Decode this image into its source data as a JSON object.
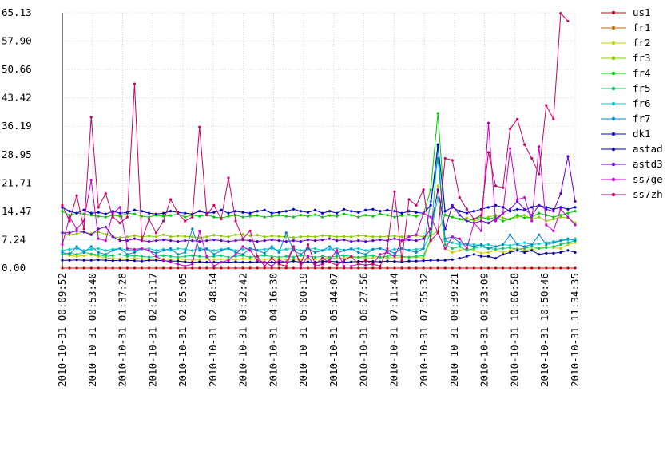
{
  "chart_data": {
    "type": "line",
    "title": "",
    "xlabel": "",
    "ylabel": "",
    "ylim": [
      0,
      65.13
    ],
    "y_ticks": [
      "0.00",
      "7.24",
      "14.47",
      "21.71",
      "28.95",
      "36.19",
      "43.42",
      "50.66",
      "57.90",
      "65.13"
    ],
    "x_ticks": [
      "2010-10-31 00:09:52",
      "2010-10-31 00:53:40",
      "2010-10-31 01:37:28",
      "2010-10-31 02:21:17",
      "2010-10-31 02:05:05",
      "2010-10-31 02:48:54",
      "2010-10-31 03:32:42",
      "2010-10-31 04:16:30",
      "2010-10-31 05:00:19",
      "2010-10-31 05:44:07",
      "2010-10-31 06:27:56",
      "2010-10-31 07:11:44",
      "2010-10-31 07:55:32",
      "2010-10-31 08:39:21",
      "2010-10-31 09:23:09",
      "2010-10-31 10:06:58",
      "2010-10-31 10:50:46",
      "2010-10-31 11:34:35"
    ],
    "grid": true,
    "legend_position": "right",
    "series": [
      {
        "name": "us1",
        "color": "#cc0000",
        "values": [
          0,
          0,
          0,
          0,
          0,
          0,
          0,
          0,
          0,
          0,
          0,
          0,
          0,
          0,
          0,
          0,
          0,
          0,
          0,
          0,
          0,
          0,
          0,
          0,
          0,
          0,
          0,
          0,
          0,
          0,
          0,
          0,
          0,
          0,
          0,
          0,
          0,
          0,
          0,
          0,
          0,
          0,
          0,
          0,
          0,
          0,
          0,
          0,
          0,
          0,
          0,
          0,
          0,
          0,
          0,
          0,
          0,
          0,
          0,
          0,
          0,
          0,
          0,
          0,
          0,
          0,
          0,
          0,
          0,
          0,
          0,
          0
        ]
      },
      {
        "name": "fr1",
        "color": "#cc6600",
        "values": [
          null,
          null,
          null,
          null,
          null,
          null,
          null,
          null,
          null,
          null,
          null,
          null,
          null,
          null,
          null,
          null,
          null,
          null,
          null,
          null,
          null,
          null,
          null,
          null,
          null,
          null,
          null,
          null,
          null,
          null,
          null,
          null,
          null,
          null,
          null,
          null,
          null,
          null,
          null,
          null,
          null,
          null,
          null,
          null,
          null,
          null,
          null,
          null,
          null,
          null,
          null,
          null,
          null,
          null,
          null,
          null,
          null,
          null,
          null,
          null,
          null,
          null,
          null,
          null,
          null,
          null,
          null,
          null,
          null,
          null,
          null,
          null
        ]
      },
      {
        "name": "fr2",
        "color": "#cccc00",
        "values": [
          3.5,
          3.2,
          3.0,
          3.2,
          3.4,
          3.0,
          2.6,
          2.5,
          2.4,
          2.3,
          2.5,
          2.4,
          2.2,
          2.3,
          2.4,
          2.2,
          2.4,
          2.2,
          2.0,
          2.2,
          2.4,
          2.2,
          2.3,
          2.2,
          2.2,
          2.4,
          2.3,
          2.3,
          2.2,
          2.4,
          2.3,
          2.2,
          2.2,
          2.2,
          2.3,
          2.3,
          2.4,
          2.6,
          2.5,
          2.6,
          2.8,
          2.7,
          2.6,
          2.6,
          2.7,
          2.6,
          2.7,
          2.7,
          2.8,
          2.8,
          2.6,
          7.0,
          21.0,
          5.0,
          4.0,
          4.5,
          5.0,
          4.5,
          3.8,
          4.0,
          4.5,
          4.0,
          4.5,
          5.0,
          4.5,
          4.8,
          5.0,
          5.5,
          5.2,
          5.0,
          6.0,
          6.5
        ]
      },
      {
        "name": "fr3",
        "color": "#88cc00",
        "values": [
          9.0,
          8.5,
          8.8,
          9.2,
          8.8,
          9.2,
          8.6,
          8.0,
          7.8,
          8.0,
          8.3,
          8.0,
          8.2,
          8.0,
          8.5,
          8.0,
          8.2,
          8.1,
          8.0,
          7.8,
          8.0,
          8.4,
          8.2,
          8.0,
          8.5,
          8.6,
          8.3,
          8.4,
          8.0,
          8.2,
          8.1,
          8.0,
          7.8,
          8.0,
          8.1,
          8.0,
          8.3,
          8.2,
          8.0,
          8.1,
          8.0,
          8.3,
          8.2,
          8.0,
          8.0,
          8.1,
          8.2,
          8.0,
          8.2,
          8.3,
          8.0,
          8.2,
          9.5,
          13.5,
          13.0,
          12.5,
          12.8,
          12.0,
          12.5,
          13.0,
          13.5,
          12.8,
          12.5,
          13.0,
          13.5,
          12.5,
          13.0,
          12.0,
          12.5,
          13.0,
          12.8,
          11.5
        ]
      },
      {
        "name": "fr4",
        "color": "#00cc00",
        "values": [
          14.5,
          13.5,
          14.0,
          13.8,
          13.5,
          13.2,
          13.0,
          13.5,
          13.2,
          14.0,
          13.8,
          13.2,
          13.0,
          13.5,
          13.2,
          13.4,
          13.8,
          13.0,
          13.5,
          13.2,
          13.6,
          13.0,
          12.8,
          13.2,
          13.5,
          13.0,
          13.2,
          13.4,
          13.0,
          13.2,
          13.5,
          13.2,
          13.0,
          13.5,
          13.2,
          13.6,
          13.0,
          13.4,
          13.2,
          13.8,
          13.5,
          13.0,
          13.5,
          13.2,
          13.8,
          13.5,
          13.0,
          13.4,
          13.6,
          13.2,
          13.8,
          20.0,
          39.5,
          13.5,
          13.0,
          12.5,
          12.0,
          12.5,
          13.0,
          12.5,
          13.0,
          12.0,
          12.5,
          13.5,
          12.8,
          13.0,
          14.0,
          13.5,
          13.0,
          13.5,
          14.0,
          14.5
        ]
      },
      {
        "name": "fr5",
        "color": "#00cc66",
        "values": [
          3.5,
          3.8,
          3.5,
          4.0,
          3.6,
          3.4,
          3.0,
          3.2,
          3.5,
          3.0,
          3.2,
          3.0,
          2.8,
          3.0,
          3.2,
          3.0,
          2.8,
          3.0,
          3.2,
          3.0,
          2.8,
          3.0,
          3.2,
          2.8,
          3.0,
          3.2,
          2.8,
          3.0,
          3.2,
          3.0,
          2.8,
          3.0,
          2.8,
          3.2,
          3.0,
          2.8,
          3.0,
          2.8,
          3.0,
          3.2,
          3.0,
          2.8,
          3.0,
          3.2,
          2.8,
          3.0,
          3.2,
          3.0,
          2.8,
          3.0,
          3.2,
          7.5,
          31.0,
          6.0,
          5.0,
          5.5,
          4.5,
          5.0,
          5.5,
          5.0,
          4.8,
          5.0,
          5.2,
          4.8,
          5.0,
          5.5,
          5.0,
          5.2,
          5.5,
          6.0,
          6.5,
          7.0
        ]
      },
      {
        "name": "fr6",
        "color": "#00cccc",
        "values": [
          4.5,
          4.8,
          5.0,
          4.5,
          4.8,
          5.0,
          4.5,
          4.8,
          5.0,
          4.6,
          4.5,
          4.8,
          5.0,
          4.5,
          4.8,
          4.5,
          5.0,
          4.8,
          4.5,
          5.0,
          4.8,
          4.5,
          4.8,
          5.0,
          4.5,
          4.8,
          5.0,
          4.6,
          4.8,
          5.0,
          4.5,
          4.8,
          5.0,
          4.5,
          4.8,
          5.0,
          4.5,
          4.8,
          5.0,
          4.6,
          4.8,
          5.0,
          4.5,
          4.8,
          5.0,
          4.5,
          4.8,
          5.0,
          4.6,
          4.8,
          5.0,
          9.0,
          18.0,
          7.0,
          6.5,
          6.0,
          6.2,
          6.0,
          5.8,
          6.0,
          5.5,
          6.0,
          5.8,
          6.2,
          6.5,
          6.0,
          6.2,
          6.5,
          6.8,
          7.0,
          7.2,
          7.5
        ]
      },
      {
        "name": "fr7",
        "color": "#0088cc",
        "values": [
          4.0,
          3.5,
          5.5,
          4.0,
          5.5,
          4.0,
          3.5,
          4.5,
          5.0,
          3.5,
          4.0,
          5.0,
          4.5,
          3.8,
          4.5,
          5.0,
          3.5,
          4.0,
          10.0,
          4.5,
          5.0,
          3.5,
          4.5,
          5.0,
          4.0,
          3.5,
          5.0,
          4.5,
          3.8,
          5.5,
          4.0,
          9.0,
          4.5,
          3.5,
          5.0,
          4.0,
          4.5,
          5.5,
          3.8,
          4.5,
          5.0,
          4.0,
          3.5,
          4.8,
          5.0,
          4.5,
          3.8,
          5.0,
          4.5,
          4.0,
          5.0,
          17.0,
          28.0,
          7.5,
          8.0,
          6.5,
          6.0,
          5.5,
          6.0,
          5.0,
          5.5,
          6.0,
          8.5,
          6.0,
          5.5,
          6.0,
          8.5,
          6.0,
          6.5,
          7.0,
          7.5,
          7.0
        ]
      },
      {
        "name": "dk1",
        "color": "#0000cc",
        "values": [
          15.5,
          14.5,
          14.0,
          14.8,
          14.0,
          14.2,
          13.8,
          14.5,
          14.0,
          14.2,
          14.8,
          14.5,
          14.0,
          13.8,
          14.0,
          14.5,
          14.2,
          14.0,
          13.8,
          14.5,
          14.0,
          14.2,
          14.8,
          14.0,
          14.5,
          14.2,
          14.0,
          14.5,
          14.8,
          14.0,
          14.2,
          14.5,
          15.0,
          14.5,
          14.2,
          14.8,
          14.0,
          14.5,
          14.0,
          15.0,
          14.5,
          14.2,
          14.8,
          15.0,
          14.5,
          14.8,
          14.5,
          14.0,
          14.5,
          14.2,
          14.0,
          16.0,
          31.5,
          14.5,
          15.5,
          14.5,
          14.0,
          14.5,
          15.0,
          15.5,
          16.0,
          15.5,
          14.5,
          15.0,
          14.8,
          15.5,
          16.0,
          15.5,
          15.0,
          15.5,
          15.0,
          15.5
        ]
      },
      {
        "name": "astad",
        "color": "#000099",
        "values": [
          2.0,
          2.0,
          2.1,
          2.0,
          2.0,
          2.1,
          2.0,
          1.9,
          2.0,
          2.0,
          1.9,
          1.8,
          2.0,
          2.0,
          1.9,
          1.8,
          1.8,
          1.6,
          1.5,
          1.6,
          1.5,
          1.5,
          1.5,
          1.5,
          1.6,
          1.5,
          1.5,
          1.6,
          1.5,
          1.5,
          1.6,
          1.5,
          1.8,
          1.5,
          1.6,
          1.5,
          1.7,
          1.8,
          1.6,
          1.5,
          1.6,
          1.7,
          1.8,
          1.7,
          1.6,
          1.8,
          1.7,
          1.6,
          1.8,
          1.8,
          1.9,
          2.0,
          2.0,
          2.0,
          2.2,
          2.5,
          3.0,
          3.5,
          3.0,
          3.0,
          2.5,
          3.5,
          4.0,
          4.5,
          4.0,
          4.5,
          3.5,
          3.8,
          3.8,
          4.0,
          4.5,
          4.0
        ]
      },
      {
        "name": "astd3",
        "color": "#6600cc",
        "values": [
          9.0,
          9.0,
          9.5,
          9.2,
          8.5,
          10.0,
          10.5,
          8.0,
          7.0,
          7.0,
          7.5,
          7.0,
          6.8,
          7.0,
          7.2,
          7.0,
          6.8,
          7.0,
          7.0,
          6.8,
          7.0,
          7.2,
          7.0,
          6.8,
          7.0,
          7.2,
          7.0,
          6.8,
          7.0,
          7.2,
          7.0,
          6.8,
          7.0,
          6.8,
          7.2,
          7.0,
          7.2,
          7.5,
          7.0,
          7.2,
          6.8,
          7.0,
          6.8,
          7.0,
          7.2,
          7.0,
          7.5,
          7.0,
          7.2,
          7.0,
          7.5,
          10.0,
          20.0,
          10.0,
          16.0,
          13.5,
          12.0,
          11.5,
          12.0,
          11.5,
          12.5,
          14.0,
          15.0,
          17.0,
          15.0,
          13.5,
          16.0,
          15.0,
          14.5,
          19.0,
          28.5,
          17.0
        ]
      },
      {
        "name": "ss7ge",
        "color": "#cc00cc",
        "values": [
          6.0,
          13.0,
          10.0,
          12.0,
          22.5,
          7.5,
          7.0,
          14.0,
          15.5,
          5.0,
          4.8,
          5.0,
          4.5,
          3.0,
          2.0,
          1.5,
          1.0,
          0.5,
          1.0,
          9.5,
          3.0,
          0.5,
          1.5,
          2.0,
          3.5,
          5.5,
          4.5,
          2.0,
          1.5,
          0.5,
          2.0,
          1.5,
          5.5,
          0.5,
          3.0,
          0.5,
          1.0,
          2.0,
          4.5,
          0.5,
          0.5,
          1.0,
          0.8,
          1.0,
          3.5,
          4.0,
          3.0,
          7.0,
          8.0,
          8.5,
          14.0,
          13.0,
          9.0,
          5.0,
          8.0,
          7.5,
          5.0,
          11.5,
          9.5,
          37.0,
          12.0,
          14.0,
          30.5,
          17.5,
          18.0,
          12.0,
          31.0,
          11.0,
          9.5,
          15.0,
          13.0,
          11.0
        ]
      },
      {
        "name": "ss7zh",
        "color": "#cc0066",
        "values": [
          16.0,
          12.0,
          18.5,
          10.0,
          38.5,
          15.5,
          19.0,
          13.0,
          11.5,
          13.0,
          47.0,
          7.0,
          12.5,
          9.0,
          12.0,
          17.5,
          14.0,
          12.0,
          13.0,
          36.0,
          13.5,
          16.0,
          12.5,
          23.0,
          12.0,
          7.5,
          9.5,
          3.0,
          0.5,
          2.5,
          1.0,
          0.5,
          5.5,
          1.0,
          6.0,
          1.0,
          2.5,
          1.5,
          0.8,
          2.0,
          3.0,
          1.0,
          2.0,
          1.0,
          0.5,
          5.0,
          19.5,
          2.0,
          17.5,
          16.0,
          20.0,
          7.0,
          9.0,
          28.0,
          27.5,
          18.0,
          15.0,
          12.5,
          13.5,
          29.5,
          21.0,
          20.5,
          35.5,
          38.0,
          31.5,
          28.0,
          24.0,
          41.5,
          38.0,
          65.0,
          63.0,
          null
        ]
      }
    ]
  }
}
